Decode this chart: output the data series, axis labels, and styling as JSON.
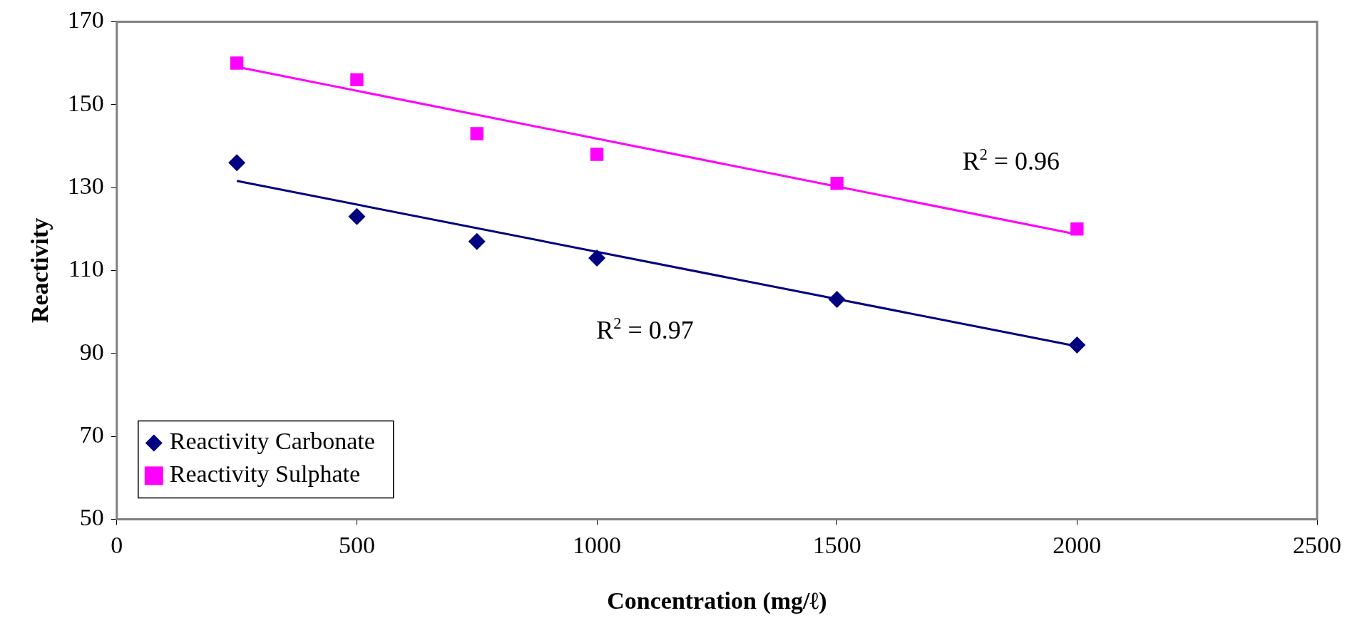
{
  "chart_data": {
    "type": "scatter",
    "xlabel": "Concentration (mg/ℓ)",
    "ylabel": "Reactivity",
    "xlim": [
      0,
      2500
    ],
    "xticks": [
      0,
      500,
      1000,
      1500,
      2000,
      2500
    ],
    "ylim": [
      50,
      170
    ],
    "yticks": [
      50,
      70,
      90,
      110,
      130,
      150,
      170
    ],
    "grid": false,
    "legend": "bottom left",
    "series": [
      {
        "name": "Reactivity Carbonate",
        "color": "#000080",
        "marker": "diamond",
        "x": [
          250,
          500,
          750,
          1000,
          1500,
          2000
        ],
        "values": [
          136,
          123,
          117,
          113,
          103,
          92
        ]
      },
      {
        "name": "Reactivity Sulphate",
        "color": "#ff00ff",
        "marker": "square",
        "x": [
          250,
          500,
          750,
          1000,
          1500,
          2000
        ],
        "values": [
          160,
          156,
          143,
          138,
          131,
          120
        ]
      },
      {
        "type": "line",
        "color": "#000080",
        "marker": "none",
        "x": [
          250,
          2000
        ],
        "values": [
          131.6,
          91.7
        ]
      },
      {
        "type": "line",
        "color": "#ff00ff",
        "marker": "none",
        "x": [
          250,
          2000
        ],
        "values": [
          159.1,
          118.7
        ]
      }
    ],
    "annotations": [
      "R$^{2}$ = 0.96",
      "R$^{2}$ = 0.97"
    ]
  }
}
